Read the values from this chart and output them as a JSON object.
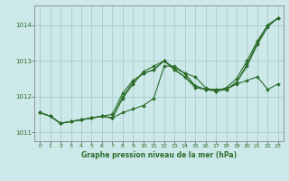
{
  "xlabel": "Graphe pression niveau de la mer (hPa)",
  "background_color": "#cce8e8",
  "grid_color": "#aacccc",
  "line_color": "#2d6e2d",
  "marker": "D",
  "markersize": 1.8,
  "linewidth": 0.8,
  "xlim": [
    -0.5,
    23.5
  ],
  "ylim": [
    1010.75,
    1014.55
  ],
  "yticks": [
    1011,
    1012,
    1013,
    1014
  ],
  "xticks": [
    0,
    1,
    2,
    3,
    4,
    5,
    6,
    7,
    8,
    9,
    10,
    11,
    12,
    13,
    14,
    15,
    16,
    17,
    18,
    19,
    20,
    21,
    22,
    23
  ],
  "lines": [
    [
      1011.55,
      1011.45,
      1011.25,
      1011.3,
      1011.35,
      1011.4,
      1011.45,
      1011.4,
      1011.55,
      1011.65,
      1011.75,
      1011.95,
      1012.85,
      1012.85,
      1012.65,
      1012.55,
      1012.25,
      1012.15,
      1012.2,
      1012.4,
      1012.85,
      1013.45,
      1013.95,
      1014.2
    ],
    [
      1011.55,
      1011.45,
      1011.25,
      1011.3,
      1011.35,
      1011.4,
      1011.45,
      1011.5,
      1012.1,
      1012.45,
      1012.65,
      1012.75,
      1013.0,
      1012.8,
      1012.65,
      1012.3,
      1012.2,
      1012.2,
      1012.2,
      1012.35,
      1012.45,
      1012.55,
      1012.2,
      1012.35
    ],
    [
      1011.55,
      1011.45,
      1011.25,
      1011.3,
      1011.35,
      1011.4,
      1011.45,
      1011.4,
      1011.95,
      1012.35,
      1012.7,
      1012.85,
      1013.0,
      1012.75,
      1012.55,
      1012.25,
      1012.2,
      1012.15,
      1012.25,
      1012.5,
      1013.0,
      1013.55,
      1014.0,
      1014.2
    ],
    [
      1011.55,
      1011.45,
      1011.25,
      1011.3,
      1011.35,
      1011.4,
      1011.45,
      1011.4,
      1012.0,
      1012.4,
      1012.65,
      1012.75,
      1013.0,
      1012.75,
      1012.55,
      1012.3,
      1012.2,
      1012.2,
      1012.2,
      1012.4,
      1012.9,
      1013.5,
      1014.0,
      1014.2
    ]
  ]
}
